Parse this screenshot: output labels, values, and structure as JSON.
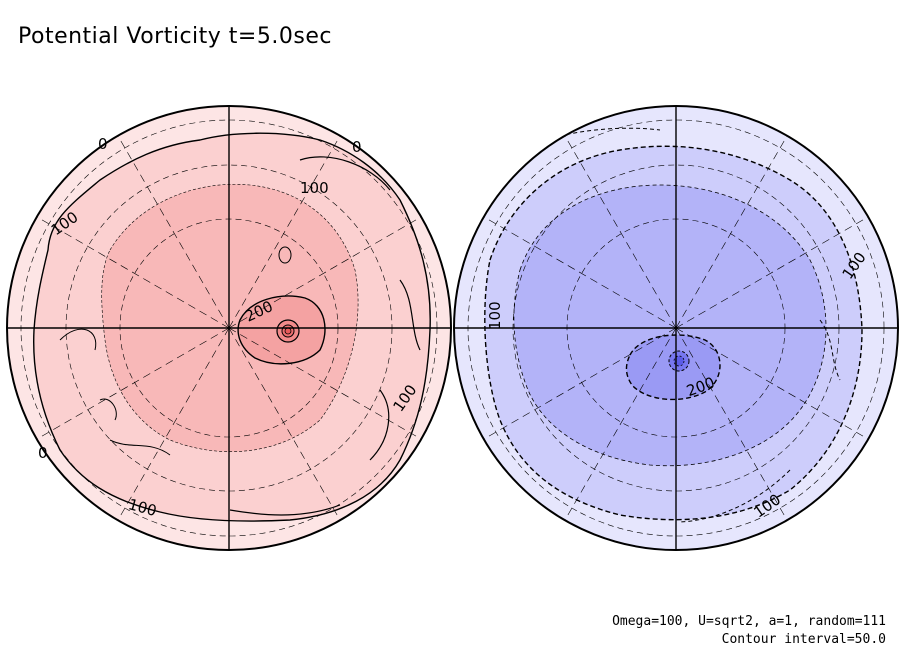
{
  "title": "Potential Vorticity t=5.0sec",
  "footer": {
    "params": "Omega=100, U=sqrt2, a=1, random=111",
    "contour": "Contour interval=50.0"
  },
  "north": {
    "labels": [
      "100",
      "100",
      "200",
      "100",
      "100",
      "0",
      "0",
      "0"
    ],
    "colors": {
      "outer": "#fde5e5",
      "band1": "#fbd0d0",
      "band2": "#f8b8b8",
      "core": "#f28a8a"
    }
  },
  "south": {
    "labels": [
      "100",
      "100",
      "200",
      "100"
    ],
    "colors": {
      "outer": "#e6e6fd",
      "band1": "#cdcdfb",
      "band2": "#b3b3f8",
      "core": "#7777f0"
    }
  }
}
